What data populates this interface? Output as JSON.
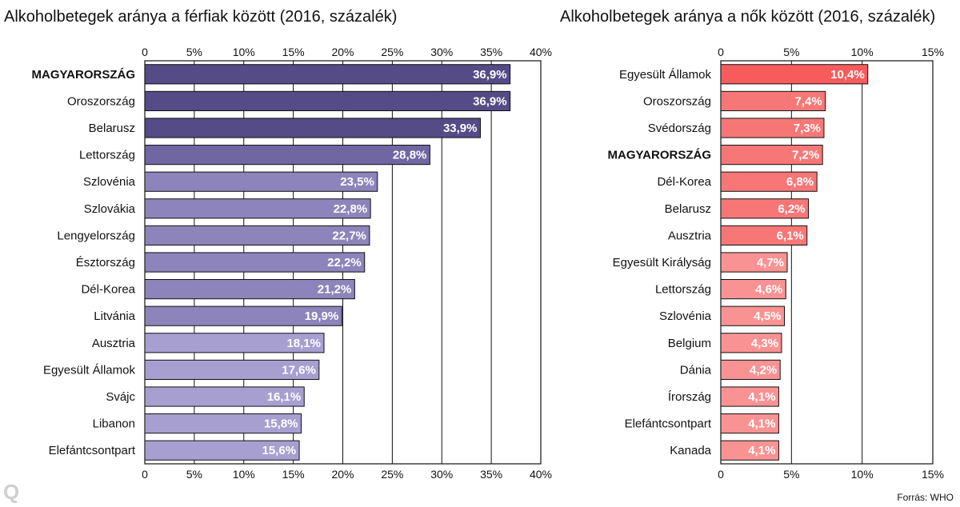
{
  "source": "Forrás: WHO",
  "logo": "Q",
  "chart_data": [
    {
      "type": "bar",
      "orientation": "horizontal",
      "title": "Alkoholbetegek aránya a férfiak között (2016, százalék)",
      "xlim": [
        0,
        40
      ],
      "ticks": [
        0,
        5,
        10,
        15,
        20,
        25,
        30,
        35,
        40
      ],
      "tick_labels": [
        "0",
        "5%",
        "10%",
        "15%",
        "20%",
        "25%",
        "30%",
        "35%",
        "40%"
      ],
      "grid": true,
      "highlight": "MAGYARORSZÁG",
      "categories": [
        "MAGYARORSZÁG",
        "Oroszország",
        "Belarusz",
        "Lettország",
        "Szlovénia",
        "Szlovákia",
        "Lengyelország",
        "Észtország",
        "Dél-Korea",
        "Litvánia",
        "Ausztria",
        "Egyesült Államok",
        "Svájc",
        "Libanon",
        "Elefántcsontpart"
      ],
      "values": [
        36.9,
        36.9,
        33.9,
        28.8,
        23.5,
        22.8,
        22.7,
        22.2,
        21.2,
        19.9,
        18.1,
        17.6,
        16.1,
        15.8,
        15.6
      ],
      "value_labels": [
        "36,9%",
        "36,9%",
        "33,9%",
        "28,8%",
        "23,5%",
        "22,8%",
        "22,7%",
        "22,2%",
        "21,2%",
        "19,9%",
        "18,1%",
        "17,6%",
        "16,1%",
        "15,8%",
        "15,6%"
      ],
      "colors": [
        "#544b87",
        "#544b87",
        "#544b87",
        "#6f66a2",
        "#8c84ba",
        "#8c84ba",
        "#8c84ba",
        "#8c84ba",
        "#8c84ba",
        "#8c84ba",
        "#a79fd0",
        "#a79fd0",
        "#a79fd0",
        "#a79fd0",
        "#a79fd0"
      ]
    },
    {
      "type": "bar",
      "orientation": "horizontal",
      "title": "Alkoholbetegek aránya a nők között (2016, százalék)",
      "xlim": [
        0,
        15
      ],
      "ticks": [
        0,
        5,
        10,
        15
      ],
      "tick_labels": [
        "0",
        "5%",
        "10%",
        "15%"
      ],
      "grid": true,
      "highlight": "MAGYARORSZÁG",
      "categories": [
        "Egyesült Államok",
        "Oroszország",
        "Svédország",
        "MAGYARORSZÁG",
        "Dél-Korea",
        "Belarusz",
        "Ausztria",
        "Egyesült Királyság",
        "Lettország",
        "Szlovénia",
        "Belgium",
        "Dánia",
        "Írország",
        "Elefántcsontpart",
        "Kanada"
      ],
      "values": [
        10.4,
        7.4,
        7.3,
        7.2,
        6.8,
        6.2,
        6.1,
        4.7,
        4.6,
        4.5,
        4.3,
        4.2,
        4.1,
        4.1,
        4.1
      ],
      "value_labels": [
        "10,4%",
        "7,4%",
        "7,3%",
        "7,2%",
        "6,8%",
        "6,2%",
        "6,1%",
        "4,7%",
        "4,6%",
        "4,5%",
        "4,3%",
        "4,2%",
        "4,1%",
        "4,1%",
        "4,1%"
      ],
      "colors": [
        "#f75b5b",
        "#f77777",
        "#f77777",
        "#f77777",
        "#f77777",
        "#f77777",
        "#f77777",
        "#f99393",
        "#f99393",
        "#f99393",
        "#f99393",
        "#f99393",
        "#f99393",
        "#f99393",
        "#f99393"
      ]
    }
  ]
}
